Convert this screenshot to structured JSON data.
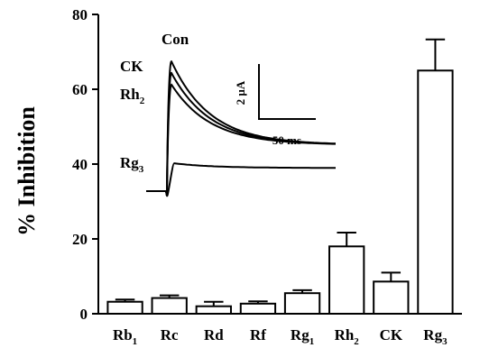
{
  "chart_data": {
    "type": "bar",
    "title": "",
    "xlabel": "",
    "ylabel": "% Inhibition",
    "ylim": [
      0,
      80
    ],
    "yticks": [
      0,
      20,
      40,
      60,
      80
    ],
    "categories": [
      {
        "base": "Rb",
        "sub": "1"
      },
      {
        "base": "Rc",
        "sub": ""
      },
      {
        "base": "Rd",
        "sub": ""
      },
      {
        "base": "Rf",
        "sub": ""
      },
      {
        "base": "Rg",
        "sub": "1"
      },
      {
        "base": "Rh",
        "sub": "2"
      },
      {
        "base": "CK",
        "sub": ""
      },
      {
        "base": "Rg",
        "sub": "3"
      }
    ],
    "values": [
      3.2,
      4.2,
      2.0,
      2.7,
      5.5,
      18.0,
      8.6,
      65.0
    ],
    "errors": [
      0.6,
      0.7,
      1.2,
      0.6,
      0.8,
      3.7,
      2.4,
      8.3
    ],
    "inset": {
      "trace_labels": [
        {
          "base": "Con",
          "sub": ""
        },
        {
          "base": "CK",
          "sub": ""
        },
        {
          "base": "Rh",
          "sub": "2"
        },
        {
          "base": "Rg",
          "sub": "3"
        }
      ],
      "trace_peaks_uA": [
        5.6,
        5.1,
        4.6,
        1.2
      ],
      "scale_bar": {
        "current_label": "2 µA",
        "time_label": "50 ms"
      }
    }
  },
  "colors": {
    "axis": "#000000",
    "bar_fill": "#ffffff",
    "bar_stroke": "#000000"
  }
}
